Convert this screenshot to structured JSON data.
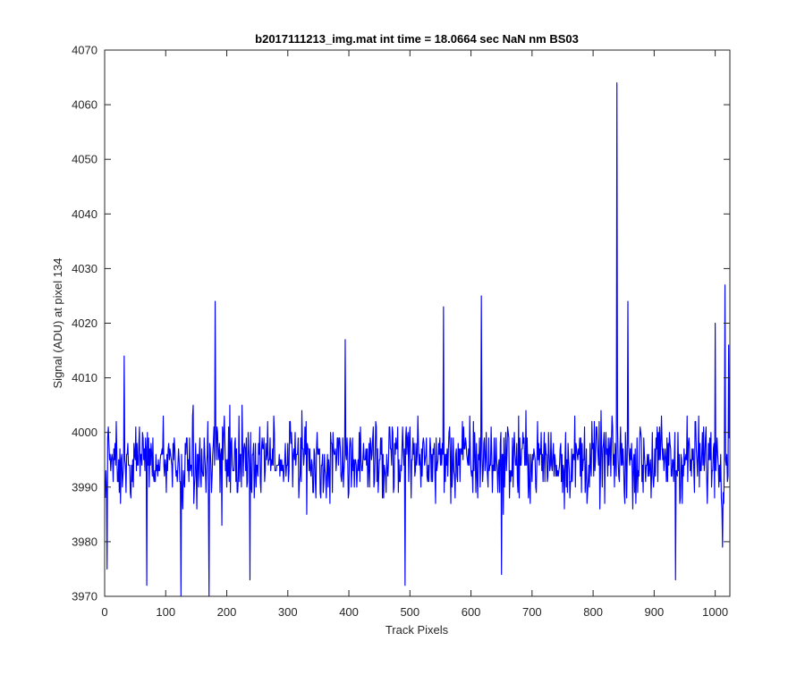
{
  "figure": {
    "background": "#ffffff"
  },
  "chart_data": {
    "type": "line",
    "title": "b2017111213_img.mat int time = 18.0664 sec  NaN nm BS03",
    "xlabel": "Track Pixels",
    "ylabel": "Signal (ADU) at pixel 134",
    "xlim": [
      0,
      1024
    ],
    "ylim": [
      3970,
      4070
    ],
    "xticks": [
      0,
      100,
      200,
      300,
      400,
      500,
      600,
      700,
      800,
      900,
      1000
    ],
    "yticks": [
      3970,
      3980,
      3990,
      4000,
      4010,
      4020,
      4030,
      4040,
      4050,
      4060,
      4070
    ],
    "grid": false,
    "legend": "none",
    "line_color": "#0000ff",
    "series": [
      {
        "x_start": 1,
        "x_step": 1,
        "count": 1024,
        "approx_mean": 3995,
        "approx_range": [
          3970,
          4064
        ],
        "notable_points": [
          {
            "x": 1,
            "y": 3988
          },
          {
            "x": 4,
            "y": 3975
          },
          {
            "x": 32,
            "y": 4014
          },
          {
            "x": 69,
            "y": 3972
          },
          {
            "x": 125,
            "y": 3970
          },
          {
            "x": 171,
            "y": 3970
          },
          {
            "x": 181,
            "y": 4024
          },
          {
            "x": 238,
            "y": 3973
          },
          {
            "x": 394,
            "y": 4017
          },
          {
            "x": 492,
            "y": 3972
          },
          {
            "x": 555,
            "y": 4023
          },
          {
            "x": 617,
            "y": 4025
          },
          {
            "x": 650,
            "y": 3974
          },
          {
            "x": 839,
            "y": 4064
          },
          {
            "x": 857,
            "y": 4024
          },
          {
            "x": 935,
            "y": 3973
          },
          {
            "x": 1000,
            "y": 4020
          },
          {
            "x": 1012,
            "y": 3979
          },
          {
            "x": 1016,
            "y": 4027
          },
          {
            "x": 1022,
            "y": 4016
          }
        ]
      }
    ]
  }
}
